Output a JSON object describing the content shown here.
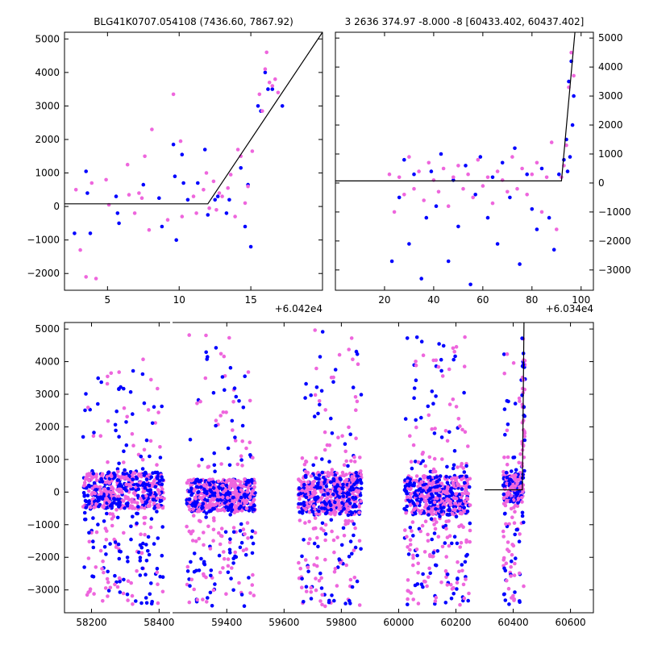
{
  "colors": {
    "series_a": "#0000ff",
    "series_b": "#ee66dd",
    "model": "#000000",
    "frame": "#000000"
  },
  "chart_data": [
    {
      "type": "scatter",
      "title": "BLG41K0707.054108 (7436.60, 7867.92)",
      "xlabel": "",
      "ylabel": "",
      "x_offset_label": "+6.042e4",
      "xlim": [
        60422,
        60440
      ],
      "ylim": [
        -2500,
        5200
      ],
      "xticks": [
        5,
        10,
        15
      ],
      "yticks": [
        -2000,
        -1000,
        0,
        1000,
        2000,
        3000,
        4000,
        5000
      ],
      "ytick_side": "left",
      "grid": false,
      "model_line": {
        "x": [
          60422,
          60432.0,
          60440
        ],
        "y": [
          80,
          80,
          5200
        ]
      },
      "series": [
        {
          "color": "series_a",
          "x": [
            60422.7,
            60423.5,
            60423.6,
            60423.8,
            60425.6,
            60425.7,
            60425.8,
            60427.5,
            60428.6,
            60428.8,
            60429.6,
            60429.7,
            60429.8,
            60430.2,
            60430.3,
            60430.6,
            60431.3,
            60431.8,
            60432.0,
            60432.5,
            60432.7,
            60433.3,
            60433.5,
            60434.3,
            60434.6,
            60434.8,
            60435.0,
            60435.5,
            60435.7,
            60436.0,
            60436.2,
            60436.5,
            60437.2
          ],
          "y": [
            -800,
            1050,
            400,
            -800,
            300,
            -200,
            -500,
            650,
            250,
            -600,
            1850,
            900,
            -1000,
            1550,
            700,
            200,
            700,
            1700,
            -250,
            200,
            300,
            -200,
            200,
            1150,
            -600,
            650,
            -1200,
            3000,
            2850,
            4000,
            3500,
            3500,
            3000
          ]
        },
        {
          "color": "series_b",
          "x": [
            60422.8,
            60423.1,
            60423.5,
            60423.9,
            60424.2,
            60424.9,
            60425.1,
            60426.4,
            60426.5,
            60426.9,
            60427.2,
            60427.4,
            60427.6,
            60427.9,
            60428.1,
            60429.2,
            60429.6,
            60430.1,
            60430.2,
            60431.0,
            60431.2,
            60431.7,
            60431.9,
            60432.1,
            60432.4,
            60432.6,
            60432.8,
            60433.0,
            60433.4,
            60433.6,
            60433.9,
            60434.1,
            60434.3,
            60434.6,
            60434.8,
            60435.1,
            60435.6,
            60435.8,
            60436.0,
            60436.1,
            60436.3,
            60436.5,
            60436.7,
            60436.9
          ],
          "y": [
            500,
            -1300,
            -2100,
            700,
            -2150,
            800,
            50,
            1250,
            350,
            -200,
            400,
            250,
            1500,
            -700,
            2300,
            -400,
            3350,
            1950,
            -300,
            300,
            -200,
            500,
            1000,
            -50,
            750,
            -100,
            400,
            300,
            550,
            950,
            -300,
            1700,
            1500,
            100,
            600,
            1650,
            3350,
            2850,
            4100,
            4600,
            3700,
            3600,
            3800,
            3400
          ]
        }
      ]
    },
    {
      "type": "scatter",
      "title": "3 2636 374.97 -8.000 -8 [60433.402, 60437.402]",
      "xlabel": "",
      "ylabel": "",
      "x_offset_label": "+6.034e4",
      "xlim": [
        60340,
        60445
      ],
      "ylim": [
        -3700,
        5200
      ],
      "xticks": [
        20,
        40,
        60,
        80,
        100
      ],
      "yticks": [
        -3000,
        -2000,
        -1000,
        0,
        1000,
        2000,
        3000,
        4000,
        5000
      ],
      "ytick_side": "right",
      "grid": false,
      "model_line": {
        "x": [
          60340,
          60432.0,
          60437.5
        ],
        "y": [
          70,
          70,
          5200
        ]
      },
      "series": [
        {
          "color": "series_a",
          "x": [
            60363,
            60366,
            60368,
            60370,
            60372,
            60375,
            60377,
            60379,
            60381,
            60383,
            60386,
            60388,
            60390,
            60393,
            60395,
            60397,
            60399,
            60402,
            60404,
            60406,
            60408,
            60411,
            60413,
            60415,
            60418,
            60420,
            60422,
            60424,
            60427,
            60429,
            60431,
            60433,
            60434,
            60435,
            60436,
            60437,
            60436.5,
            60435.5,
            60434.5
          ],
          "y": [
            -2700,
            -500,
            800,
            -2100,
            300,
            -3300,
            -1200,
            400,
            -800,
            1000,
            -2700,
            100,
            -1500,
            600,
            -3500,
            -400,
            900,
            -1200,
            200,
            -2100,
            700,
            -500,
            1200,
            -2800,
            300,
            -900,
            -1600,
            500,
            -1200,
            -2300,
            300,
            800,
            1500,
            3500,
            4200,
            3000,
            2000,
            900,
            400
          ]
        },
        {
          "color": "series_b",
          "x": [
            60362,
            60364,
            60366,
            60368,
            60370,
            60372,
            60374,
            60376,
            60378,
            60380,
            60382,
            60384,
            60386,
            60388,
            60390,
            60392,
            60394,
            60396,
            60398,
            60400,
            60402,
            60404,
            60406,
            60408,
            60410,
            60412,
            60414,
            60416,
            60418,
            60420,
            60422,
            60424,
            60426,
            60428,
            60430,
            60432,
            60433,
            60434,
            60435,
            60436,
            60437
          ],
          "y": [
            300,
            -1000,
            200,
            -400,
            900,
            -200,
            400,
            -600,
            700,
            100,
            -300,
            500,
            -800,
            200,
            600,
            -200,
            300,
            -500,
            800,
            -100,
            200,
            -700,
            400,
            100,
            -300,
            900,
            -200,
            500,
            -400,
            300,
            700,
            -1000,
            200,
            1400,
            -1600,
            200,
            600,
            1300,
            3300,
            4500,
            3700
          ]
        }
      ]
    },
    {
      "type": "scatter",
      "title": "",
      "xlabel": "",
      "ylabel": "",
      "xlim": [
        58120,
        60680
      ],
      "ylim": [
        -3700,
        5200
      ],
      "xticks": [
        58200,
        58400,
        59400,
        59600,
        59800,
        60000,
        60200,
        60400,
        60600
      ],
      "yticks": [
        -3000,
        -2000,
        -1000,
        0,
        1000,
        2000,
        3000,
        4000,
        5000
      ],
      "axis_break_x": [
        58435,
        59205
      ],
      "grid": false,
      "seasons": [
        {
          "x": [
            58175,
            58415
          ],
          "core_y": [
            -500,
            600
          ],
          "scatter_y": [
            -3500,
            4300
          ]
        },
        {
          "x": [
            59260,
            59500
          ],
          "core_y": [
            -600,
            400
          ],
          "scatter_y": [
            -3600,
            5000
          ]
        },
        {
          "x": [
            59650,
            59870
          ],
          "core_y": [
            -700,
            600
          ],
          "scatter_y": [
            -3600,
            5000
          ]
        },
        {
          "x": [
            60020,
            60250
          ],
          "core_y": [
            -700,
            500
          ],
          "scatter_y": [
            -3600,
            4800
          ]
        },
        {
          "x": [
            60365,
            60437
          ],
          "core_y": [
            -300,
            600
          ],
          "scatter_y": [
            -3500,
            4800
          ]
        }
      ],
      "model_line": {
        "x": [
          60300,
          60432.0,
          60437.5
        ],
        "y": [
          70,
          70,
          5200
        ]
      }
    }
  ]
}
